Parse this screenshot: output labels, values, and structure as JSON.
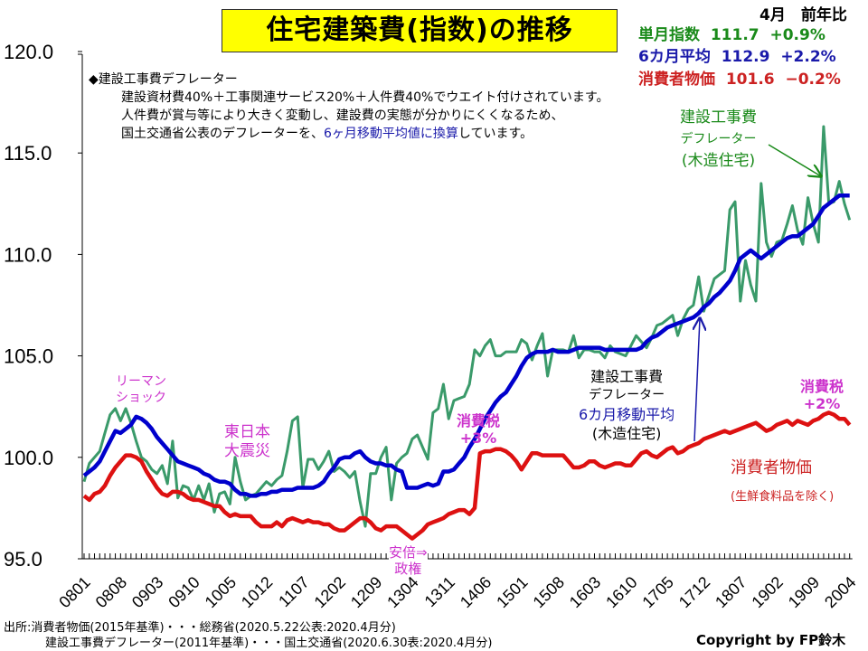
{
  "title": "住宅建築費(指数)の推移",
  "legend": {
    "header": "4月　前年比",
    "rows": [
      {
        "label": "単月指数",
        "value": "111.7",
        "change": "+0.9%",
        "color": "#1a8a1a"
      },
      {
        "label": "6カ月平均",
        "value": "112.9",
        "change": "+2.2%",
        "color": "#1a1aaa"
      },
      {
        "label": "消費者物価",
        "value": "101.6",
        "change": "−0.2%",
        "color": "#cc2222"
      }
    ]
  },
  "note": {
    "heading": "◆建設工事費デフレーター",
    "line1": "建設資材費40%＋工事関連サービス20%＋人件費40%でウエイト付けされています。",
    "line2": "人件費が賞与等により大きく変動し、建設費の実態が分かりにくくなるため、",
    "line3_a": "国土交通省公表のデフレーターを、",
    "line3_b": "6ヶ月移動平均値に換算",
    "line3_c": "しています。"
  },
  "annotations": {
    "lehman": [
      "リーマン",
      "ショック"
    ],
    "quake": [
      "東日本",
      "大震災"
    ],
    "abe": [
      "安倍⇒",
      "政権"
    ],
    "tax3": [
      "消費税",
      "+3%"
    ],
    "tax2": [
      "消費税",
      "+2%"
    ],
    "green_label": [
      "建設工事費",
      "デフレーター",
      "(木造住宅)"
    ],
    "blue_label": [
      "建設工事費",
      "デフレーター",
      "6カ月移動平均",
      "(木造住宅)"
    ],
    "cpi_label": "消費者物価",
    "cpi_sub": "(生鮮食料品を除く)"
  },
  "footer": {
    "line1": "出所:消費者物価(2015年基準)・・・総務省(2020.5.22公表:2020.4月分)",
    "line2": "建設工事費デフレーター(2011年基準)・・・国土交通省(2020.6.30表:2020.4月分)",
    "copyright": "Copyright by FP鈴木"
  },
  "chart_data": {
    "type": "line",
    "title": "住宅建築費(指数)の推移",
    "x_start": "0801",
    "x_end": "2004",
    "x_frequency": "monthly",
    "x_tick_labels": [
      "0801",
      "0808",
      "0903",
      "0910",
      "1005",
      "1012",
      "1107",
      "1202",
      "1209",
      "1304",
      "1311",
      "1406",
      "1501",
      "1508",
      "1603",
      "1610",
      "1705",
      "1712",
      "1807",
      "1902",
      "1909",
      "2004"
    ],
    "y_tick_labels": [
      "120.0",
      "115.0",
      "110.0",
      "105.0",
      "100.0",
      "95.0"
    ],
    "ylim": [
      95,
      120
    ],
    "grid": false,
    "series": [
      {
        "name": "建設工事費デフレーター(木造住宅)",
        "color": "#3a9a6a",
        "values": [
          98.8,
          99.7,
          100.0,
          100.3,
          101.2,
          102.1,
          102.4,
          101.8,
          102.4,
          101.7,
          100.8,
          100.0,
          99.8,
          99.4,
          99.2,
          99.6,
          98.7,
          100.8,
          98.0,
          98.6,
          98.5,
          97.9,
          98.6,
          97.9,
          98.7,
          97.3,
          98.2,
          98.3,
          97.7,
          100.0,
          98.8,
          97.9,
          98.1,
          98.2,
          98.5,
          98.8,
          98.6,
          98.9,
          99.1,
          100.3,
          101.8,
          102.0,
          98.5,
          99.9,
          99.9,
          99.4,
          99.8,
          100.3,
          99.3,
          99.5,
          99.3,
          99.0,
          99.3,
          97.8,
          96.6,
          99.2,
          99.2,
          100.0,
          100.5,
          97.9,
          99.7,
          100.0,
          100.2,
          100.9,
          101.1,
          100.5,
          99.9,
          102.2,
          102.4,
          103.6,
          101.9,
          102.8,
          102.9,
          103.0,
          103.6,
          105.3,
          105.0,
          105.5,
          105.8,
          105.0,
          105.0,
          105.2,
          105.2,
          105.2,
          105.8,
          105.6,
          104.8,
          105.5,
          106.1,
          104.0,
          105.3,
          105.3,
          105.3,
          105.2,
          106.0,
          104.9,
          105.3,
          105.3,
          105.2,
          105.2,
          104.9,
          105.5,
          105.2,
          105.1,
          105.0,
          105.5,
          106.0,
          105.7,
          105.4,
          105.9,
          106.5,
          106.6,
          106.8,
          107.0,
          106.0,
          106.8,
          107.3,
          107.5,
          108.9,
          107.2,
          108.0,
          108.8,
          109.0,
          109.2,
          112.2,
          112.6,
          107.7,
          109.7,
          108.5,
          107.7,
          113.5,
          110.6,
          109.9,
          110.6,
          110.7,
          111.5,
          112.4,
          111.2,
          110.5,
          112.8,
          111.5,
          110.6,
          116.3,
          112.5,
          112.6,
          113.6,
          112.5,
          111.7
        ]
      },
      {
        "name": "建設工事費デフレーター6カ月移動平均(木造住宅)",
        "color": "#0000cc",
        "values": [
          99.1,
          99.3,
          99.5,
          99.8,
          100.3,
          100.8,
          101.3,
          101.2,
          101.4,
          101.6,
          102.0,
          101.9,
          101.7,
          101.4,
          101.0,
          100.7,
          100.4,
          100.1,
          99.8,
          99.7,
          99.6,
          99.5,
          99.4,
          99.2,
          99.1,
          98.9,
          98.8,
          98.8,
          98.7,
          98.4,
          98.2,
          98.2,
          98.1,
          98.1,
          98.2,
          98.2,
          98.3,
          98.3,
          98.4,
          98.4,
          98.4,
          98.5,
          98.5,
          98.5,
          98.5,
          98.6,
          98.8,
          99.2,
          99.5,
          99.9,
          100.0,
          100.0,
          100.2,
          100.3,
          100.0,
          99.8,
          99.7,
          99.7,
          99.6,
          99.6,
          99.4,
          99.3,
          98.5,
          98.5,
          98.5,
          98.6,
          98.7,
          98.6,
          98.7,
          99.3,
          99.3,
          99.4,
          99.7,
          100.0,
          100.5,
          100.9,
          101.4,
          101.9,
          102.3,
          102.7,
          103.0,
          103.2,
          103.6,
          104.0,
          104.5,
          104.9,
          105.1,
          105.2,
          105.2,
          105.2,
          105.3,
          105.2,
          105.2,
          105.2,
          105.3,
          105.4,
          105.4,
          105.4,
          105.4,
          105.4,
          105.3,
          105.3,
          105.3,
          105.3,
          105.3,
          105.3,
          105.3,
          105.4,
          105.7,
          105.9,
          106.0,
          106.2,
          106.4,
          106.5,
          106.6,
          106.7,
          106.8,
          106.9,
          107.1,
          107.4,
          107.6,
          107.9,
          108.1,
          108.4,
          108.7,
          109.2,
          109.8,
          110.0,
          110.2,
          110.0,
          109.8,
          110.0,
          110.2,
          110.4,
          110.6,
          110.8,
          110.9,
          110.9,
          111.1,
          111.3,
          111.5,
          111.9,
          112.3,
          112.5,
          112.7,
          112.9,
          112.9,
          112.9
        ]
      },
      {
        "name": "消費者物価(生鮮食料品を除く)",
        "color": "#dd1111",
        "values": [
          98.1,
          97.9,
          98.2,
          98.3,
          98.6,
          99.1,
          99.5,
          99.8,
          100.1,
          100.1,
          100.0,
          99.8,
          99.3,
          98.9,
          98.5,
          98.2,
          98.1,
          98.3,
          98.3,
          98.2,
          98.0,
          97.9,
          97.9,
          97.8,
          97.7,
          97.6,
          97.6,
          97.3,
          97.1,
          97.2,
          97.1,
          97.1,
          97.1,
          96.8,
          96.6,
          96.6,
          96.6,
          96.8,
          96.6,
          96.9,
          97.0,
          96.9,
          96.8,
          96.9,
          96.8,
          96.8,
          96.7,
          96.7,
          96.5,
          96.4,
          96.4,
          96.6,
          96.8,
          97.0,
          97.0,
          96.8,
          96.5,
          96.4,
          96.6,
          96.6,
          96.6,
          96.4,
          96.2,
          96.0,
          96.2,
          96.4,
          96.7,
          96.8,
          96.9,
          97.0,
          97.2,
          97.3,
          97.4,
          97.4,
          97.2,
          97.5,
          100.2,
          100.3,
          100.3,
          100.4,
          100.4,
          100.3,
          100.1,
          99.8,
          99.4,
          99.8,
          100.2,
          100.2,
          100.1,
          100.1,
          100.1,
          100.1,
          100.1,
          99.8,
          99.5,
          99.5,
          99.6,
          99.8,
          99.8,
          99.6,
          99.5,
          99.6,
          99.7,
          99.7,
          99.6,
          99.6,
          99.9,
          100.2,
          100.3,
          100.1,
          100.0,
          100.2,
          100.4,
          100.5,
          100.2,
          100.3,
          100.5,
          100.6,
          100.7,
          100.9,
          101.0,
          101.1,
          101.2,
          101.3,
          101.2,
          101.3,
          101.4,
          101.5,
          101.6,
          101.7,
          101.5,
          101.3,
          101.4,
          101.6,
          101.7,
          101.8,
          101.6,
          101.8,
          101.7,
          101.6,
          101.8,
          101.9,
          102.1,
          102.2,
          102.1,
          101.9,
          101.9,
          101.6
        ]
      }
    ]
  }
}
